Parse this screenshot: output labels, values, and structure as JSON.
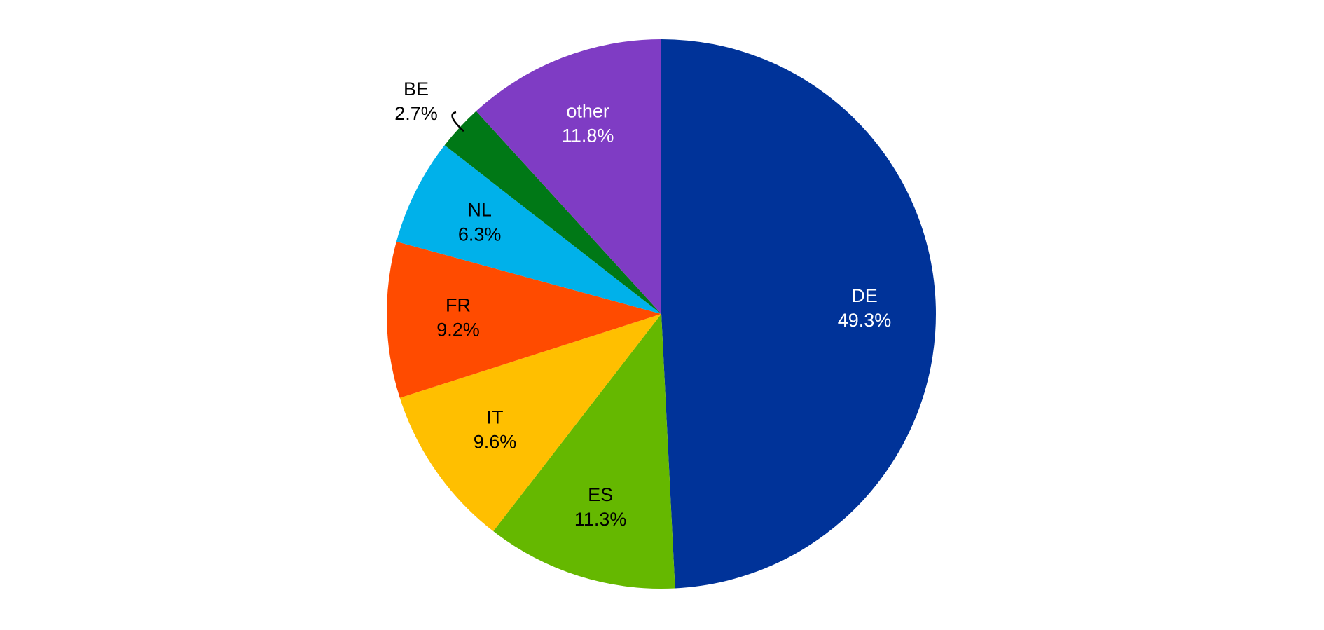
{
  "chart_data": {
    "type": "pie",
    "categories": [
      "DE",
      "ES",
      "IT",
      "FR",
      "NL",
      "BE",
      "other"
    ],
    "values": [
      49.3,
      11.3,
      9.6,
      9.2,
      6.3,
      2.7,
      11.8
    ],
    "value_labels": [
      "49.3%",
      "11.3%",
      "9.6%",
      "9.2%",
      "6.3%",
      "2.7%",
      "11.8%"
    ],
    "colors": [
      "#003399",
      "#65b800",
      "#ffbf00",
      "#ff4b00",
      "#00b1ea",
      "#007816",
      "#7f3cc4"
    ]
  }
}
